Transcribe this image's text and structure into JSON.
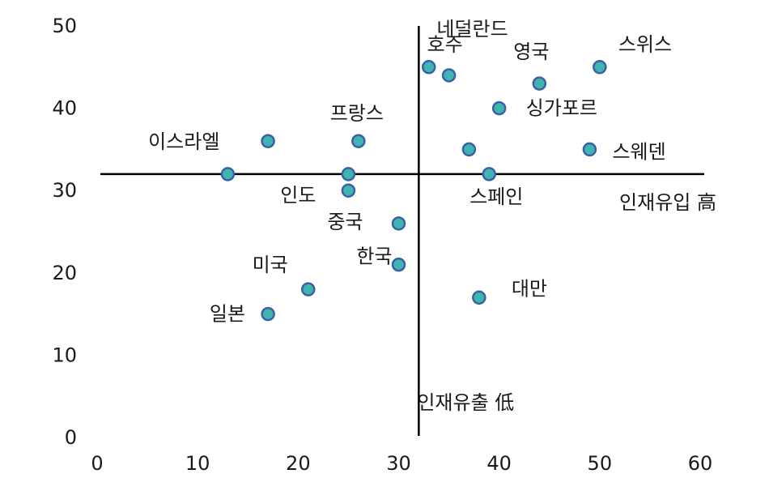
{
  "chart_data": {
    "type": "scatter",
    "title": "",
    "xlabel": "",
    "ylabel": "",
    "xlim": [
      0,
      60
    ],
    "ylim": [
      0,
      50
    ],
    "x_ticks": [
      "0",
      "10",
      "20",
      "30",
      "40",
      "50",
      "60"
    ],
    "y_ticks": [
      "0",
      "10",
      "20",
      "30",
      "40",
      "50"
    ],
    "grid": false,
    "quadrant_lines": {
      "x": 32,
      "y": 32
    },
    "quadrant_labels": {
      "vertical_top": "네덜란드",
      "right": "인재유입 高",
      "bottom": "인재유출 低"
    },
    "points": [
      {
        "label": "이스라엘",
        "x": 13,
        "y": 32
      },
      {
        "label": "",
        "x": 17,
        "y": 36
      },
      {
        "label": "미국",
        "x": 21,
        "y": 18
      },
      {
        "label": "일본",
        "x": 17,
        "y": 15
      },
      {
        "label": "프랑스",
        "x": 26,
        "y": 36
      },
      {
        "label": "인도",
        "x": 25,
        "y": 32
      },
      {
        "label": "",
        "x": 25,
        "y": 30
      },
      {
        "label": "중국",
        "x": 30,
        "y": 26
      },
      {
        "label": "한국",
        "x": 30,
        "y": 21
      },
      {
        "label": "",
        "x": 33,
        "y": 45
      },
      {
        "label": "호주",
        "x": 35,
        "y": 44
      },
      {
        "label": "",
        "x": 37,
        "y": 35
      },
      {
        "label": "스페인",
        "x": 39,
        "y": 32
      },
      {
        "label": "대만",
        "x": 38,
        "y": 17
      },
      {
        "label": "싱가포르",
        "x": 40,
        "y": 40
      },
      {
        "label": "영국",
        "x": 44,
        "y": 43
      },
      {
        "label": "스위스",
        "x": 50,
        "y": 45
      },
      {
        "label": "스웨덴",
        "x": 49,
        "y": 35
      }
    ]
  }
}
